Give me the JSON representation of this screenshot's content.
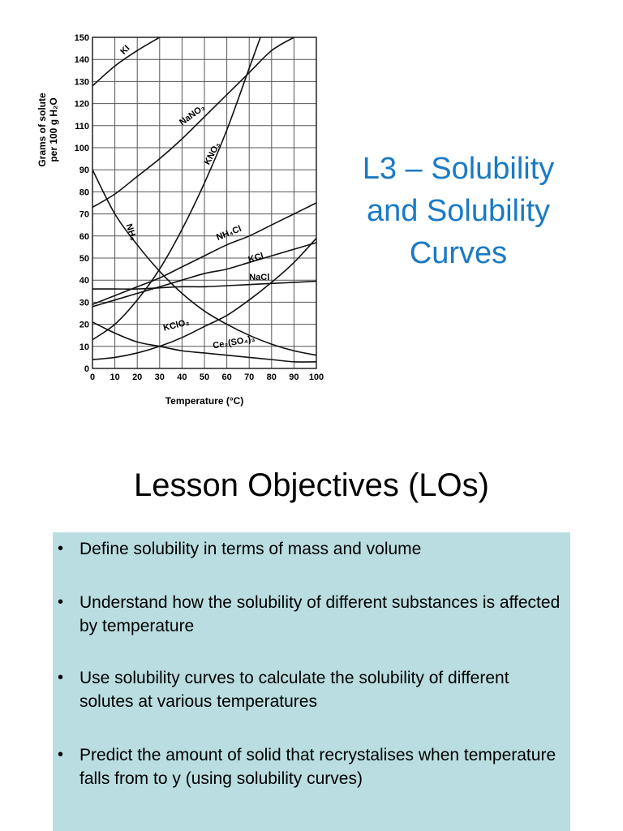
{
  "slide": {
    "title_lines": [
      "L3 – Solubility",
      "and Solubility",
      "Curves"
    ],
    "objectives_heading": "Lesson Objectives (LOs)",
    "objectives": [
      {
        "bullet": "•",
        "text": "Define solubility in terms of mass and volume"
      },
      {
        "bullet": "•",
        "text": "Understand how the solubility of different substances is affected by temperature"
      },
      {
        "bullet": "•",
        "text": "Use solubility curves to calculate the solubility of different solutes at various temperatures"
      },
      {
        "bullet": "•",
        "text": "Predict the amount of solid that recrystalises when temperature falls from  to y (using solubility curves)"
      }
    ],
    "colors": {
      "title": "#1a7ac4",
      "objectives_background": "#b9dde0"
    }
  },
  "chart_data": {
    "type": "line",
    "xlabel": "Temperature (°C)",
    "ylabel": [
      "Grams of solute",
      "per 100 g H₂O"
    ],
    "xlim": [
      0,
      100
    ],
    "ylim": [
      0,
      150
    ],
    "xticks": [
      "0",
      "10",
      "20",
      "30",
      "40",
      "50",
      "60",
      "70",
      "80",
      "90",
      "100"
    ],
    "yticks": [
      "0",
      "10",
      "20",
      "30",
      "40",
      "50",
      "60",
      "70",
      "80",
      "90",
      "100",
      "110",
      "120",
      "130",
      "140",
      "150"
    ],
    "grid": true,
    "series": [
      {
        "name": "KI",
        "label_at": [
          14,
          142
        ],
        "label_rot": -45,
        "x": [
          0,
          10,
          20,
          30
        ],
        "y": [
          128,
          137,
          144,
          150
        ]
      },
      {
        "name": "NaNO₃",
        "label_at": [
          40,
          110
        ],
        "label_rot": -36,
        "x": [
          0,
          10,
          20,
          30,
          40,
          50,
          60,
          70,
          80,
          90
        ],
        "y": [
          73,
          79,
          87,
          95,
          104,
          114,
          124,
          134,
          144,
          150
        ]
      },
      {
        "name": "KNO₃",
        "label_at": [
          52,
          92
        ],
        "label_rot": -62,
        "x": [
          0,
          10,
          20,
          30,
          40,
          50,
          60,
          70,
          75
        ],
        "y": [
          13,
          20,
          31,
          45,
          63,
          84,
          108,
          136,
          150
        ]
      },
      {
        "name": "NH₃",
        "label_at": [
          15,
          65
        ],
        "label_rot": 72,
        "x": [
          0,
          10,
          20,
          30,
          40,
          50,
          60,
          70,
          80,
          90,
          100
        ],
        "y": [
          90,
          70,
          56,
          44,
          34,
          26,
          20,
          15,
          11,
          8,
          6
        ]
      },
      {
        "name": "NH₄Cl",
        "label_at": [
          56,
          58
        ],
        "label_rot": -22,
        "x": [
          0,
          10,
          20,
          30,
          40,
          50,
          60,
          70,
          80,
          90,
          100
        ],
        "y": [
          29,
          33,
          37,
          41,
          46,
          51,
          56,
          60,
          65,
          70,
          75
        ]
      },
      {
        "name": "KCl",
        "label_at": [
          70,
          48
        ],
        "label_rot": -16,
        "x": [
          0,
          10,
          20,
          30,
          40,
          50,
          60,
          70,
          80,
          90,
          100
        ],
        "y": [
          28,
          31,
          34,
          37,
          40,
          43,
          45,
          48,
          51,
          54,
          57
        ]
      },
      {
        "name": "NaCl",
        "label_at": [
          70,
          40
        ],
        "label_rot": 0,
        "x": [
          0,
          10,
          20,
          30,
          40,
          50,
          60,
          70,
          80,
          90,
          100
        ],
        "y": [
          36,
          36,
          36,
          36.5,
          37,
          37,
          37.5,
          38,
          38.5,
          39,
          39.5
        ]
      },
      {
        "name": "KClO₃",
        "label_at": [
          32,
          17
        ],
        "label_rot": -14,
        "x": [
          0,
          10,
          20,
          30,
          40,
          50,
          60,
          70,
          80,
          90,
          100
        ],
        "y": [
          4,
          5,
          7,
          10,
          14,
          19,
          24,
          31,
          39,
          48,
          59
        ]
      },
      {
        "name": "Ce₂(SO₄)₃",
        "label_at": [
          54,
          9
        ],
        "label_rot": -10,
        "x": [
          0,
          10,
          20,
          30,
          40,
          50,
          60,
          70,
          80,
          90,
          100
        ],
        "y": [
          21,
          16,
          12,
          10,
          8,
          7,
          6,
          5,
          4,
          3,
          3
        ]
      }
    ]
  }
}
